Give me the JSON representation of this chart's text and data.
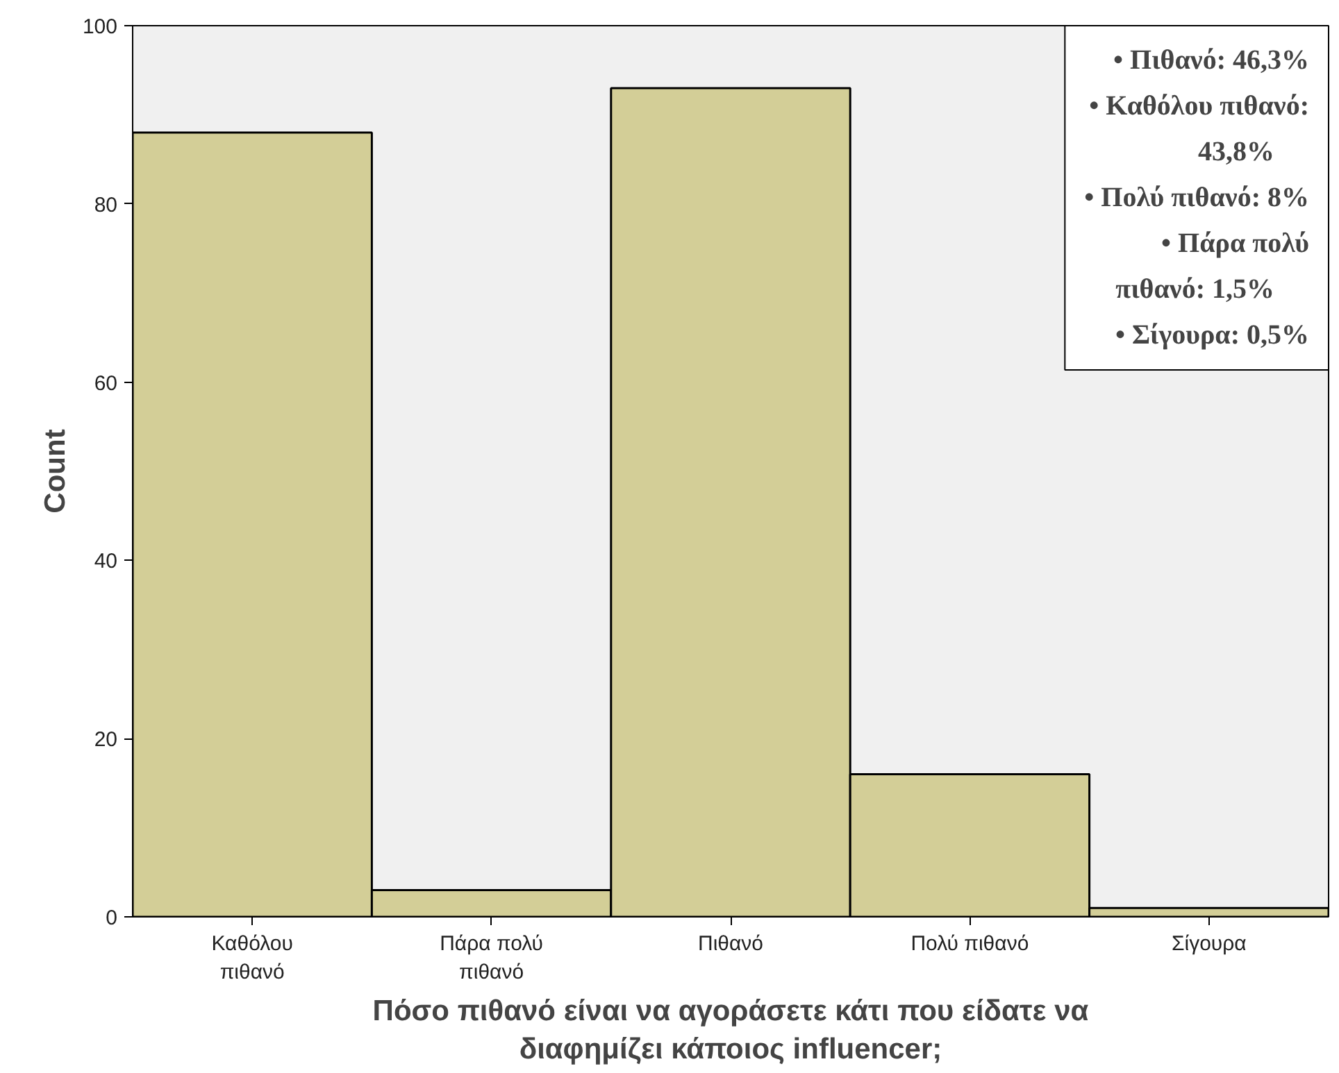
{
  "chart_data": {
    "type": "bar",
    "xlabel": "Πόσο πιθανό είναι να αγοράσετε κάτι που είδατε να διαφημίζει κάποιος influencer;",
    "ylabel": "Count",
    "categories": [
      "Καθόλου πιθανό",
      "Πάρα πολύ πιθανό",
      "Πιθανό",
      "Πολύ πιθανό",
      "Σίγουρα"
    ],
    "values": [
      88,
      3,
      93,
      16,
      1
    ],
    "color": "#d3ce97",
    "ylim": [
      0,
      100
    ],
    "yticks": [
      0,
      20,
      40,
      60,
      80,
      100
    ],
    "grid": false,
    "annotations": [
      "• Πιθανό: 46,3%",
      "• Καθόλου πιθανό: 43,8%",
      "• Πολύ πιθανό: 8%",
      "• Πάρα πολύ πιθανό: 1,5%",
      "• Σίγουρα: 0,5%"
    ]
  }
}
